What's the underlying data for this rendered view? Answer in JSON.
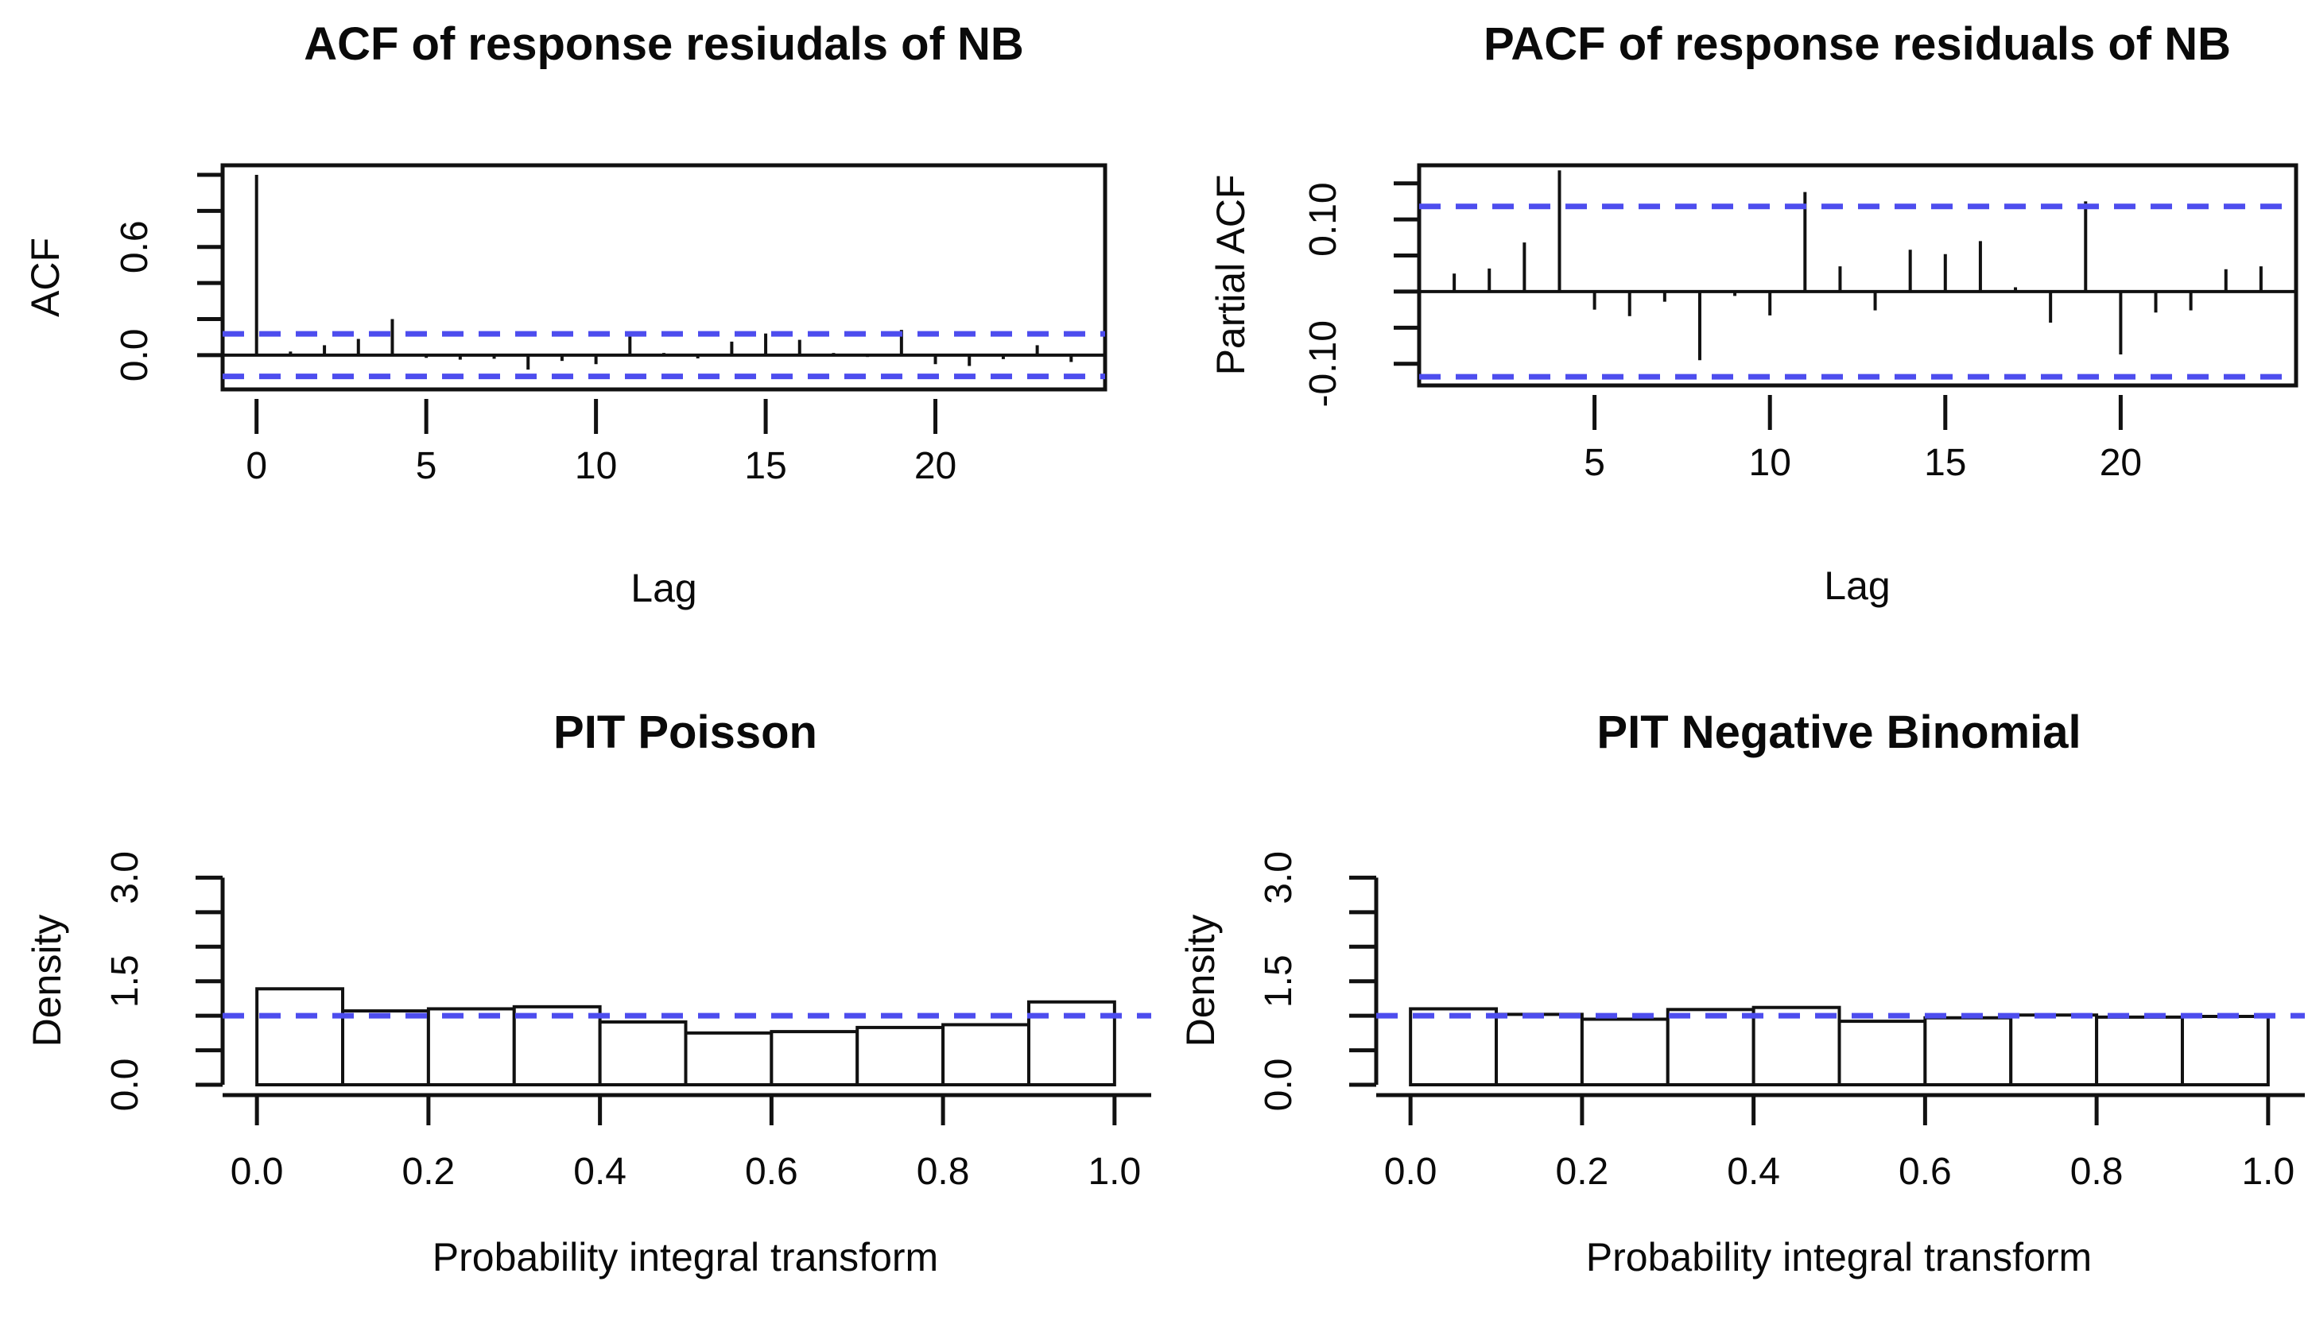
{
  "figure": {
    "background": "#ffffff",
    "ink": "#111111",
    "conf_line_blue": "#4d4dee",
    "bar_fill": "#ffffff"
  },
  "chart_data": [
    {
      "id": "acf",
      "type": "stem",
      "title": "ACF of response resiudals of NB",
      "xlabel": "Lag",
      "ylabel": "ACF",
      "lag_start": 0,
      "values": [
        1.0,
        0.02,
        0.055,
        0.09,
        0.2,
        -0.015,
        -0.025,
        -0.02,
        -0.08,
        -0.032,
        -0.05,
        0.13,
        0.012,
        -0.018,
        0.075,
        0.12,
        0.085,
        0.012,
        -0.01,
        0.14,
        -0.05,
        -0.06,
        -0.022,
        0.055,
        -0.038
      ],
      "conf_band": 0.118,
      "xlim": [
        -1,
        25
      ],
      "ylim": [
        -0.19,
        1.053
      ],
      "xticks": [
        {
          "v": 0,
          "label": "0"
        },
        {
          "v": 5,
          "label": "5"
        },
        {
          "v": 10,
          "label": "10"
        },
        {
          "v": 15,
          "label": "15"
        },
        {
          "v": 20,
          "label": "20"
        }
      ],
      "yticks_all": [
        0,
        0.2,
        0.4,
        0.6,
        0.8,
        1.0
      ],
      "ytick_labels": [
        {
          "v": 0.6,
          "label": "0.6"
        },
        {
          "v": 0.0,
          "label": "0.0"
        }
      ]
    },
    {
      "id": "pacf",
      "type": "stem",
      "title": "PACF of response residuals of NB",
      "xlabel": "Lag",
      "ylabel": "Partial ACF",
      "lag_start": 1,
      "values": [
        0.025,
        0.032,
        0.068,
        0.168,
        -0.025,
        -0.034,
        -0.014,
        -0.095,
        -0.006,
        -0.033,
        0.138,
        0.035,
        -0.026,
        0.058,
        0.052,
        0.07,
        0.006,
        -0.043,
        0.125,
        -0.087,
        -0.029,
        -0.026,
        0.031,
        0.035
      ],
      "conf_band": 0.118,
      "xlim": [
        0,
        25
      ],
      "ylim": [
        -0.13,
        0.175
      ],
      "xticks": [
        {
          "v": 5,
          "label": "5"
        },
        {
          "v": 10,
          "label": "10"
        },
        {
          "v": 15,
          "label": "15"
        },
        {
          "v": 20,
          "label": "20"
        }
      ],
      "yticks_all": [
        0.15,
        0.1,
        0.05,
        0.0,
        -0.05,
        -0.1
      ],
      "ytick_labels": [
        {
          "v": 0.1,
          "label": "0.10"
        },
        {
          "v": -0.1,
          "label": "-0.10"
        }
      ]
    },
    {
      "id": "pit_poisson",
      "type": "histogram",
      "title": "PIT Poisson",
      "xlabel": "Probability integral transform",
      "ylabel": "Density",
      "bin_start": 0,
      "bin_width": 0.1,
      "densities": [
        1.39,
        1.07,
        1.1,
        1.13,
        0.91,
        0.75,
        0.77,
        0.83,
        0.87,
        1.2
      ],
      "ref_line": 1.0,
      "xlim": [
        -0.04,
        1.04
      ],
      "ylim": [
        0,
        3.12
      ],
      "xticks": [
        {
          "v": 0.0,
          "label": "0.0"
        },
        {
          "v": 0.2,
          "label": "0.2"
        },
        {
          "v": 0.4,
          "label": "0.4"
        },
        {
          "v": 0.6,
          "label": "0.6"
        },
        {
          "v": 0.8,
          "label": "0.8"
        },
        {
          "v": 1.0,
          "label": "1.0"
        }
      ],
      "yticks_all": [
        0,
        0.5,
        1.0,
        1.5,
        2.0,
        2.5,
        3.0
      ],
      "ytick_labels": [
        {
          "v": 3.0,
          "label": "3.0"
        },
        {
          "v": 1.5,
          "label": "1.5"
        },
        {
          "v": 0.0,
          "label": "0.0"
        }
      ]
    },
    {
      "id": "pit_negative_binomial",
      "type": "histogram",
      "title": "PIT Negative Binomial",
      "xlabel": "Probability integral transform",
      "ylabel": "Density",
      "bin_start": 0,
      "bin_width": 0.1,
      "densities": [
        1.1,
        1.02,
        0.95,
        1.09,
        1.12,
        0.92,
        0.97,
        1.01,
        0.98,
        0.99
      ],
      "ref_line": 1.0,
      "xlim": [
        -0.04,
        1.04
      ],
      "ylim": [
        0,
        3.12
      ],
      "xticks": [
        {
          "v": 0.0,
          "label": "0.0"
        },
        {
          "v": 0.2,
          "label": "0.2"
        },
        {
          "v": 0.4,
          "label": "0.4"
        },
        {
          "v": 0.6,
          "label": "0.6"
        },
        {
          "v": 0.8,
          "label": "0.8"
        },
        {
          "v": 1.0,
          "label": "1.0"
        }
      ],
      "yticks_all": [
        0,
        0.5,
        1.0,
        1.5,
        2.0,
        2.5,
        3.0
      ],
      "ytick_labels": [
        {
          "v": 3.0,
          "label": "3.0"
        },
        {
          "v": 1.5,
          "label": "1.5"
        },
        {
          "v": 0.0,
          "label": "0.0"
        }
      ]
    }
  ]
}
